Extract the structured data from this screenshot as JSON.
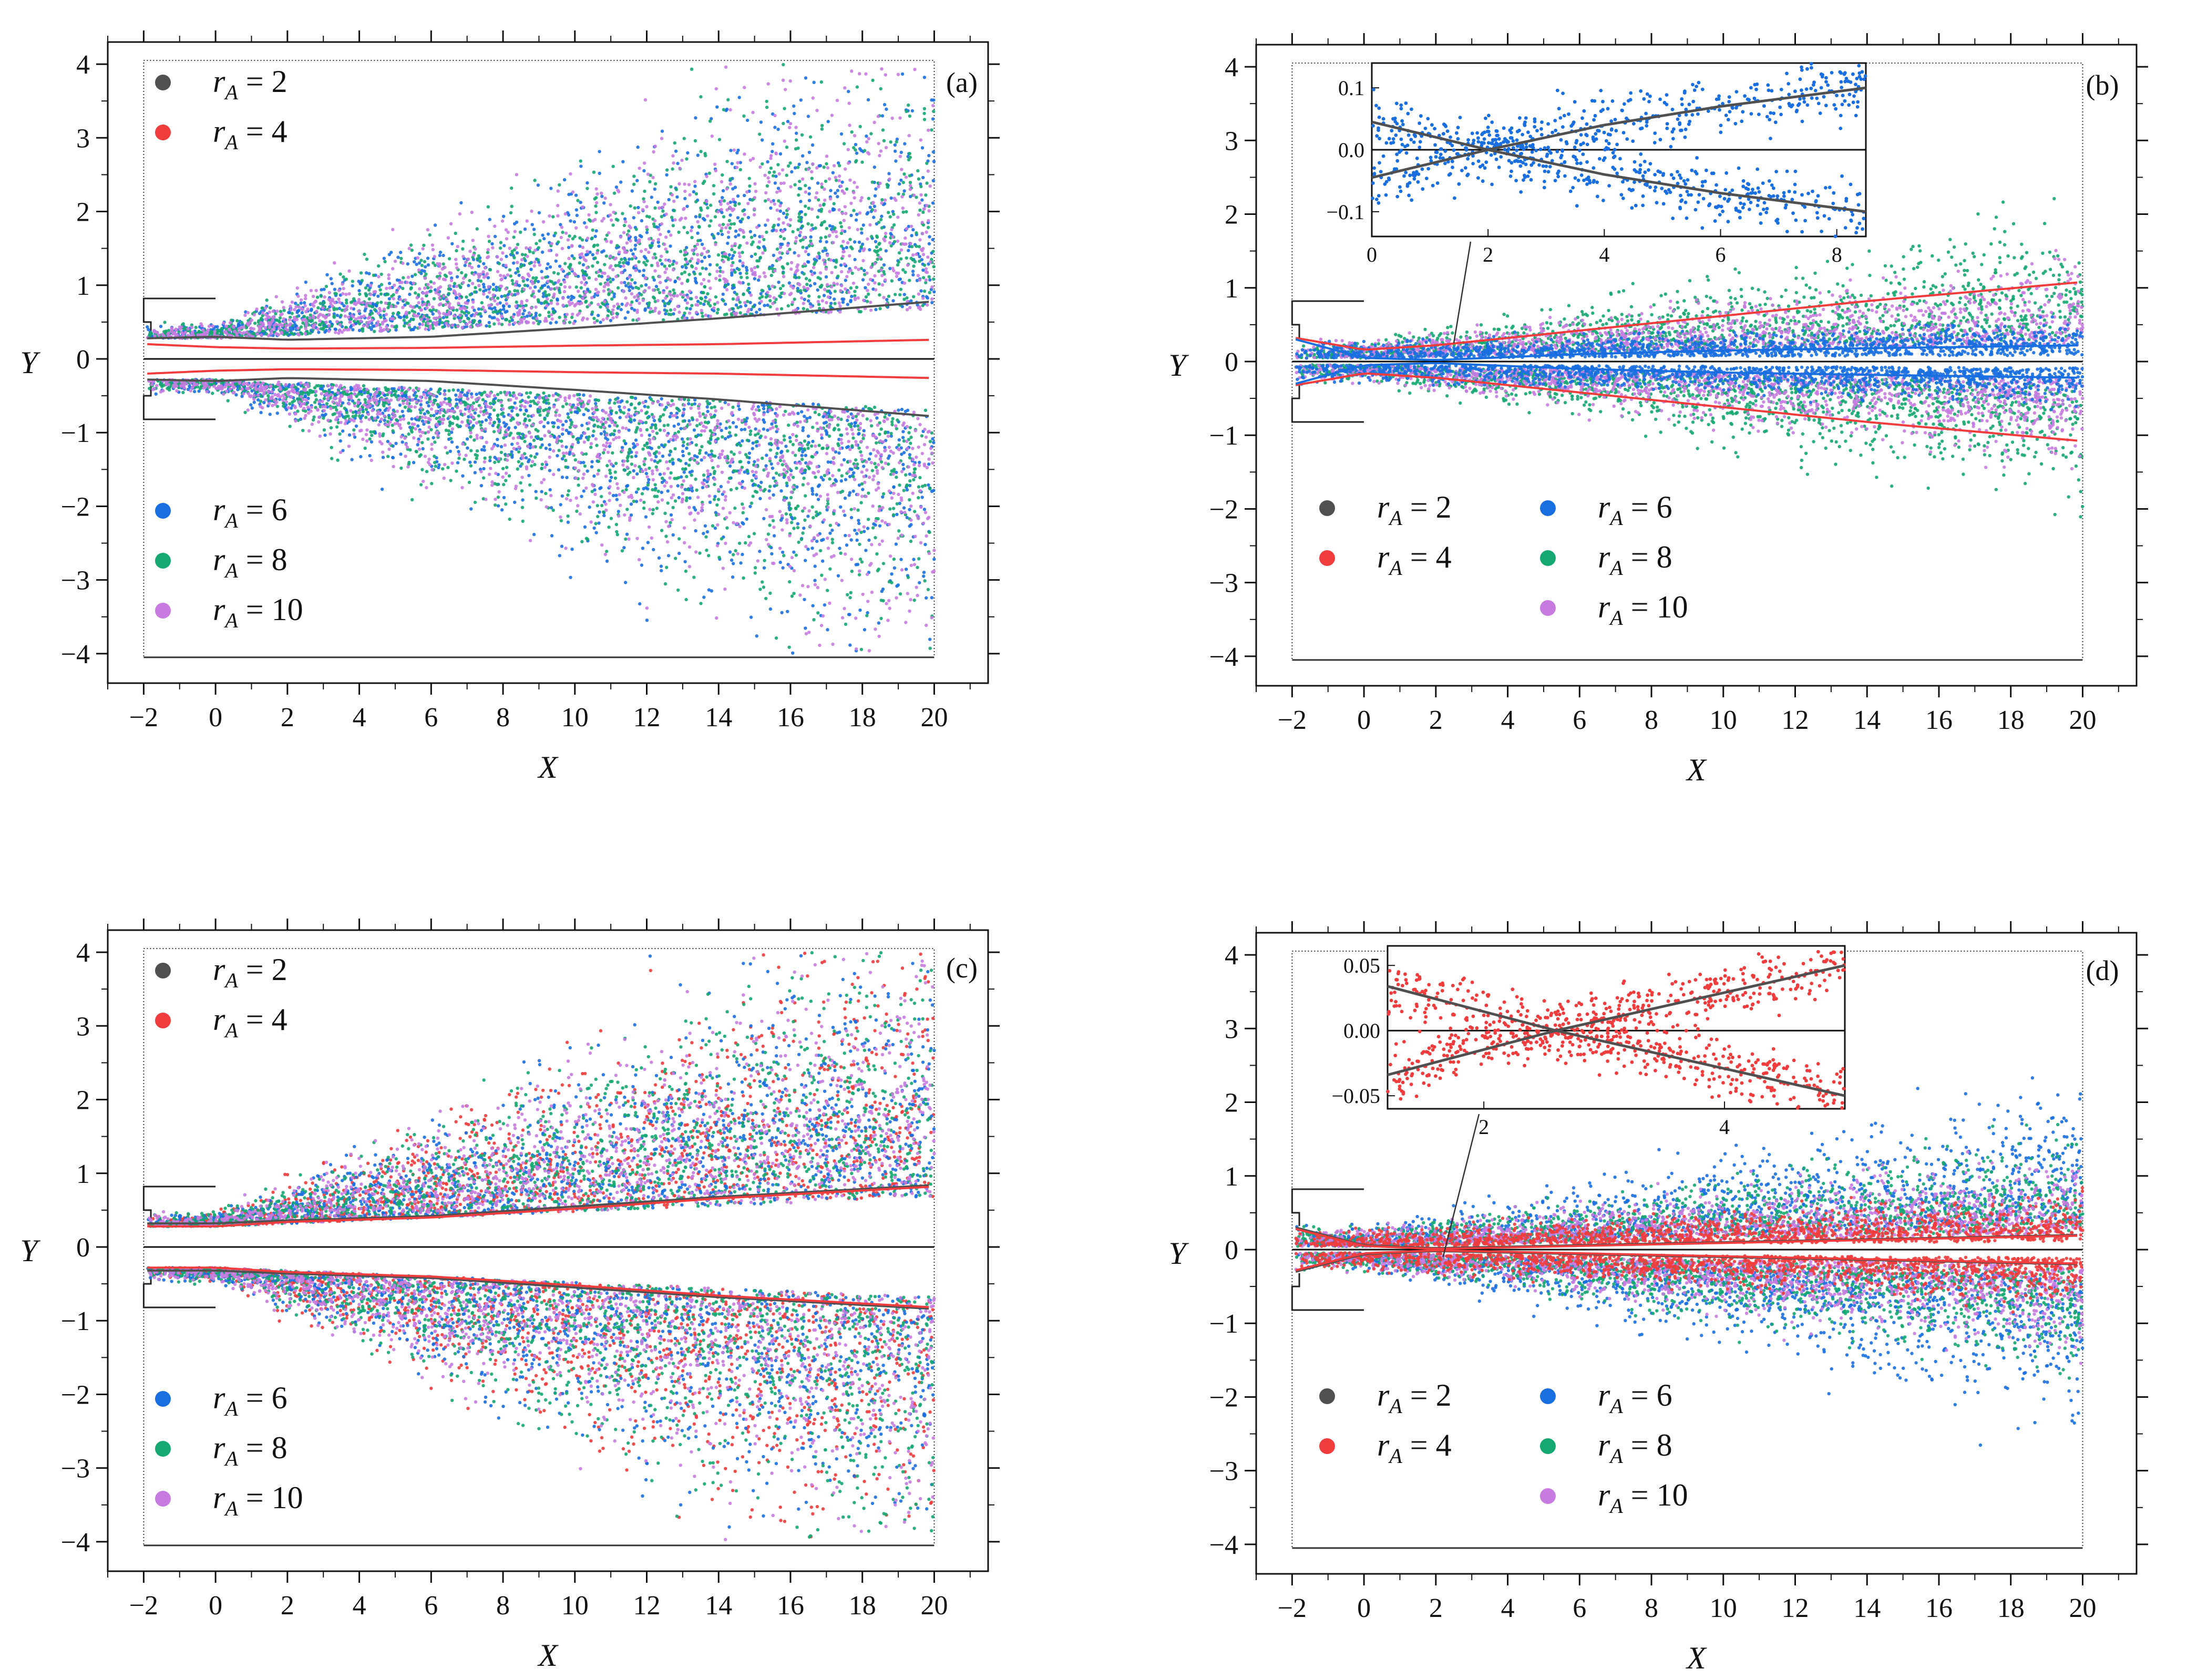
{
  "figure": {
    "colors": {
      "rA_2": "#505050",
      "rA_4": "#f03c3c",
      "rA_6": "#1a6fe0",
      "rA_8": "#15a870",
      "rA_10": "#c77be0",
      "axis": "#111111"
    },
    "axis_labels": {
      "x": "X",
      "y": "Y"
    }
  },
  "chart_data": [
    {
      "type": "scatter",
      "panel": "a",
      "tag": "(a)",
      "xlabel": "X",
      "ylabel": "Y",
      "xlim": [
        -3,
        21.5
      ],
      "ylim": [
        -4.4,
        4.3
      ],
      "xticks": [
        "−2",
        "0",
        "2",
        "4",
        "6",
        "8",
        "10",
        "12",
        "14",
        "16",
        "18",
        "20"
      ],
      "yticks": [
        "−4",
        "−3",
        "−2",
        "−1",
        "0",
        "1",
        "2",
        "3",
        "4"
      ],
      "legend_top": [
        {
          "label_r": "r",
          "label_sub": "A",
          "label_eq": " = 2",
          "series": "rA_2"
        },
        {
          "label_r": "r",
          "label_sub": "A",
          "label_eq": " = 4",
          "series": "rA_4"
        }
      ],
      "legend_bottom": [
        {
          "label_r": "r",
          "label_sub": "A",
          "label_eq": " = 6",
          "series": "rA_6"
        },
        {
          "label_r": "r",
          "label_sub": "A",
          "label_eq": " = 8",
          "series": "rA_8"
        },
        {
          "label_r": "r",
          "label_sub": "A",
          "label_eq": " = 10",
          "series": "rA_10"
        }
      ],
      "scatter_series": [
        "rA_6",
        "rA_8",
        "rA_10"
      ],
      "spread": {
        "y0": 0.3,
        "slope_low": 0.02,
        "slope_high": 0.16
      },
      "boundary_lines": [
        {
          "series": "rA_2",
          "x": [
            -1.9,
            0,
            2,
            6,
            10,
            14,
            20
          ],
          "y": [
            0.28,
            0.3,
            0.26,
            0.3,
            0.42,
            0.55,
            0.78
          ]
        },
        {
          "series": "rA_4",
          "x": [
            -1.9,
            0,
            2,
            6,
            10,
            14,
            20
          ],
          "y": [
            0.2,
            0.16,
            0.14,
            0.15,
            0.18,
            0.2,
            0.26
          ]
        }
      ]
    },
    {
      "type": "scatter",
      "panel": "b",
      "tag": "(b)",
      "xlabel": "X",
      "ylabel": "Y",
      "xlim": [
        -3,
        21.5
      ],
      "ylim": [
        -4.4,
        4.3
      ],
      "xticks": [
        "−2",
        "0",
        "2",
        "4",
        "6",
        "8",
        "10",
        "12",
        "14",
        "16",
        "18",
        "20"
      ],
      "yticks": [
        "−4",
        "−3",
        "−2",
        "−1",
        "0",
        "1",
        "2",
        "3",
        "4"
      ],
      "legend_two_col": [
        {
          "label_r": "r",
          "label_sub": "A",
          "label_eq": " = 2",
          "series": "rA_2"
        },
        {
          "label_r": "r",
          "label_sub": "A",
          "label_eq": " = 6",
          "series": "rA_6"
        },
        {
          "label_r": "r",
          "label_sub": "A",
          "label_eq": " = 4",
          "series": "rA_4"
        },
        {
          "label_r": "r",
          "label_sub": "A",
          "label_eq": " = 8",
          "series": "rA_8"
        },
        {
          "label_r": "r",
          "label_sub": "A",
          "label_eq": " = 10",
          "series": "rA_10"
        }
      ],
      "scatter_series": [
        "rA_8",
        "rA_10",
        "rA_6"
      ],
      "spread_by_series": {
        "rA_8": 0.075,
        "rA_10": 0.05,
        "rA_6": 0.012
      },
      "boundary_lines": [
        {
          "series": "rA_4",
          "x": [
            -1.9,
            0,
            2,
            6,
            10,
            14,
            20
          ],
          "y": [
            0.32,
            0.16,
            0.22,
            0.42,
            0.62,
            0.82,
            1.08
          ]
        },
        {
          "series": "rA_6",
          "x": [
            -1.9,
            0,
            2,
            6,
            10,
            14,
            20
          ],
          "y": [
            0.3,
            0.05,
            0.02,
            0.1,
            0.15,
            0.18,
            0.22
          ]
        }
      ],
      "inset": {
        "xlim": [
          0,
          8.5
        ],
        "ylim": [
          -0.14,
          0.14
        ],
        "xticks": [
          "0",
          "2",
          "4",
          "6",
          "8"
        ],
        "yticks": [
          "0.1",
          "0.0",
          "−0.1"
        ],
        "scatter_series": "rA_6",
        "lines": [
          {
            "x": [
              0,
              2,
              4,
              6,
              8.5
            ],
            "y": [
              0.045,
              0.0,
              -0.04,
              -0.07,
              -0.1
            ]
          },
          {
            "x": [
              0,
              2,
              4,
              6,
              8.5
            ],
            "y": [
              -0.045,
              0.0,
              0.04,
              0.07,
              0.1
            ]
          }
        ]
      }
    },
    {
      "type": "scatter",
      "panel": "c",
      "tag": "(c)",
      "xlabel": "X",
      "ylabel": "Y",
      "xlim": [
        -3,
        21.5
      ],
      "ylim": [
        -4.4,
        4.3
      ],
      "xticks": [
        "−2",
        "0",
        "2",
        "4",
        "6",
        "8",
        "10",
        "12",
        "14",
        "16",
        "18",
        "20"
      ],
      "yticks": [
        "−4",
        "−3",
        "−2",
        "−1",
        "0",
        "1",
        "2",
        "3",
        "4"
      ],
      "legend_top": [
        {
          "label_r": "r",
          "label_sub": "A",
          "label_eq": " = 2",
          "series": "rA_2"
        },
        {
          "label_r": "r",
          "label_sub": "A",
          "label_eq": " = 4",
          "series": "rA_4"
        }
      ],
      "legend_bottom": [
        {
          "label_r": "r",
          "label_sub": "A",
          "label_eq": " = 6",
          "series": "rA_6"
        },
        {
          "label_r": "r",
          "label_sub": "A",
          "label_eq": " = 8",
          "series": "rA_8"
        },
        {
          "label_r": "r",
          "label_sub": "A",
          "label_eq": " = 10",
          "series": "rA_10"
        }
      ],
      "scatter_series": [
        "rA_4",
        "rA_6",
        "rA_8",
        "rA_10"
      ],
      "spread": {
        "y0": 0.3,
        "slope_low": 0.02,
        "slope_high": 0.16
      },
      "boundary_lines": [
        {
          "series": "rA_2",
          "x": [
            -1.9,
            0,
            2,
            6,
            10,
            14,
            20
          ],
          "y": [
            0.32,
            0.32,
            0.36,
            0.42,
            0.55,
            0.68,
            0.84
          ]
        },
        {
          "series": "rA_4",
          "x": [
            -1.9,
            0,
            2,
            6,
            10,
            14,
            20
          ],
          "y": [
            0.28,
            0.28,
            0.34,
            0.4,
            0.52,
            0.66,
            0.82
          ]
        }
      ]
    },
    {
      "type": "scatter",
      "panel": "d",
      "tag": "(d)",
      "xlabel": "X",
      "ylabel": "Y",
      "xlim": [
        -3,
        21.5
      ],
      "ylim": [
        -4.4,
        4.3
      ],
      "xticks": [
        "−2",
        "0",
        "2",
        "4",
        "6",
        "8",
        "10",
        "12",
        "14",
        "16",
        "18",
        "20"
      ],
      "yticks": [
        "−4",
        "−3",
        "−2",
        "−1",
        "0",
        "1",
        "2",
        "3",
        "4"
      ],
      "legend_two_col": [
        {
          "label_r": "r",
          "label_sub": "A",
          "label_eq": " = 2",
          "series": "rA_2"
        },
        {
          "label_r": "r",
          "label_sub": "A",
          "label_eq": " = 6",
          "series": "rA_6"
        },
        {
          "label_r": "r",
          "label_sub": "A",
          "label_eq": " = 4",
          "series": "rA_4"
        },
        {
          "label_r": "r",
          "label_sub": "A",
          "label_eq": " = 8",
          "series": "rA_8"
        },
        {
          "label_r": "r",
          "label_sub": "A",
          "label_eq": " = 10",
          "series": "rA_10"
        }
      ],
      "scatter_series": [
        "rA_6",
        "rA_8",
        "rA_10",
        "rA_4"
      ],
      "spread_by_series": {
        "rA_6": 0.09,
        "rA_8": 0.06,
        "rA_10": 0.05,
        "rA_4": 0.02
      },
      "boundary_lines": [
        {
          "series": "rA_2",
          "x": [
            -1.9,
            0,
            2,
            6,
            10,
            14,
            20
          ],
          "y": [
            0.3,
            0.06,
            0.02,
            0.06,
            0.1,
            0.14,
            0.2
          ]
        },
        {
          "series": "rA_4",
          "x": [
            -1.9,
            0,
            2,
            6,
            10,
            14,
            20
          ],
          "y": [
            0.28,
            0.05,
            0.01,
            0.05,
            0.09,
            0.13,
            0.19
          ]
        }
      ],
      "inset": {
        "xlim": [
          1.2,
          5.0
        ],
        "ylim": [
          -0.06,
          0.065
        ],
        "xticks": [
          "2",
          "4"
        ],
        "yticks": [
          "0.05",
          "0.00",
          "−0.05"
        ],
        "scatter_series": "rA_4",
        "lines": [
          {
            "x": [
              1.2,
              2.6,
              5.0
            ],
            "y": [
              0.034,
              0.0,
              -0.05
            ]
          },
          {
            "x": [
              1.2,
              2.6,
              5.0
            ],
            "y": [
              -0.034,
              0.0,
              0.05
            ]
          }
        ]
      }
    }
  ]
}
